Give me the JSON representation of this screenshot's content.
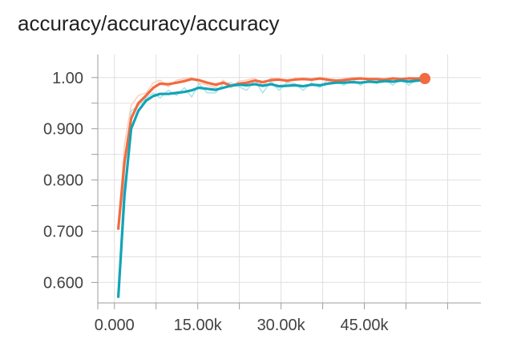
{
  "chart_data": {
    "type": "line",
    "title": "accuracy/accuracy/accuracy",
    "xlabel": "",
    "ylabel": "",
    "xlim": [
      -3000,
      66000
    ],
    "ylim": [
      0.56,
      1.045
    ],
    "x_ticks": [
      0,
      15000,
      30000,
      45000
    ],
    "x_tick_labels": [
      "0.000",
      "15.00k",
      "30.00k",
      "45.00k"
    ],
    "y_ticks": [
      0.6,
      0.7,
      0.8,
      0.9,
      1.0
    ],
    "y_tick_labels": [
      "0.600",
      "0.700",
      "0.800",
      "0.900",
      "1.00"
    ],
    "grid": true,
    "legend": "none",
    "colors": {
      "series_orange": "#f26a3f",
      "series_teal": "#14a3b5",
      "raw_orange": "#fbc9b6",
      "raw_teal": "#9fe0e6",
      "grid": "#e0e0e0",
      "axis": "#9e9e9e"
    },
    "series": [
      {
        "color": "#f26a3f",
        "end_marker": true,
        "x": [
          700,
          1800,
          3000,
          4300,
          5700,
          7000,
          8200,
          9700,
          11200,
          12600,
          13900,
          15200,
          16700,
          18200,
          19600,
          21000,
          22400,
          23800,
          25300,
          26700,
          28200,
          29600,
          31100,
          32500,
          34000,
          35500,
          37000,
          38400,
          39900,
          41300,
          42800,
          44300,
          45800,
          47200,
          48700,
          50100,
          51600,
          53000,
          54500,
          55900
        ],
        "y": [
          0.705,
          0.835,
          0.92,
          0.95,
          0.965,
          0.98,
          0.988,
          0.987,
          0.99,
          0.993,
          0.997,
          0.995,
          0.99,
          0.986,
          0.99,
          0.984,
          0.988,
          0.99,
          0.994,
          0.991,
          0.995,
          0.996,
          0.994,
          0.996,
          0.997,
          0.996,
          0.998,
          0.996,
          0.994,
          0.995,
          0.997,
          0.998,
          0.997,
          0.997,
          0.996,
          0.998,
          0.997,
          0.998,
          0.998,
          0.998
        ]
      },
      {
        "color": "#14a3b5",
        "end_marker": false,
        "x": [
          700,
          1800,
          3000,
          4300,
          5700,
          7000,
          8200,
          9700,
          11200,
          12600,
          13900,
          15200,
          16700,
          18200,
          19600,
          21000,
          22400,
          23800,
          25300,
          26700,
          28200,
          29600,
          31100,
          32500,
          34000,
          35500,
          37000,
          38400,
          39900,
          41300,
          42800,
          44300,
          45800,
          47200,
          48700,
          50100,
          51600,
          53000,
          54500,
          55900
        ],
        "y": [
          0.572,
          0.77,
          0.9,
          0.935,
          0.955,
          0.964,
          0.968,
          0.968,
          0.97,
          0.972,
          0.975,
          0.98,
          0.978,
          0.976,
          0.98,
          0.984,
          0.986,
          0.985,
          0.987,
          0.984,
          0.987,
          0.983,
          0.984,
          0.985,
          0.983,
          0.986,
          0.985,
          0.988,
          0.99,
          0.99,
          0.991,
          0.99,
          0.992,
          0.991,
          0.993,
          0.992,
          0.994,
          0.992,
          0.994,
          0.995
        ]
      }
    ],
    "raw_series": [
      {
        "color": "#fbc9b6",
        "x": [
          700,
          1800,
          3000,
          4300,
          5700,
          7000,
          8200,
          9700,
          11200,
          12600,
          13900,
          15200,
          16700,
          18200,
          19600,
          21000,
          22400,
          23800,
          25300,
          26700,
          28200,
          29600,
          31100,
          32500,
          34000,
          35500,
          37000,
          38400,
          39900,
          41300,
          42800,
          44300,
          45800,
          47200,
          48700,
          50100,
          51600,
          53000,
          54500,
          55900
        ],
        "y": [
          0.705,
          0.87,
          0.945,
          0.965,
          0.97,
          0.99,
          0.995,
          0.982,
          0.995,
          0.998,
          1.0,
          0.99,
          0.985,
          0.98,
          0.995,
          0.98,
          0.993,
          0.995,
          0.999,
          0.985,
          0.999,
          0.998,
          0.99,
          0.999,
          0.999,
          0.993,
          1.0,
          0.993,
          0.99,
          0.998,
          1.0,
          1.0,
          0.995,
          0.998,
          0.993,
          1.0,
          0.995,
          1.0,
          0.999,
          0.998
        ]
      },
      {
        "color": "#9fe0e6",
        "x": [
          700,
          1800,
          3000,
          4300,
          5700,
          7000,
          8200,
          9700,
          11200,
          12600,
          13900,
          15200,
          16700,
          18200,
          19600,
          21000,
          22400,
          23800,
          25300,
          26700,
          28200,
          29600,
          31100,
          32500,
          34000,
          35500,
          37000,
          38400,
          39900,
          41300,
          42800,
          44300,
          45800,
          47200,
          48700,
          50100,
          51600,
          53000,
          54500,
          55900
        ],
        "y": [
          0.572,
          0.82,
          0.935,
          0.945,
          0.96,
          0.97,
          0.96,
          0.975,
          0.965,
          0.98,
          0.962,
          0.988,
          0.97,
          0.97,
          0.988,
          0.99,
          0.982,
          0.975,
          0.995,
          0.97,
          0.993,
          0.975,
          0.99,
          0.988,
          0.975,
          0.99,
          0.98,
          0.996,
          0.995,
          0.985,
          0.997,
          0.985,
          0.996,
          0.988,
          0.998,
          0.985,
          0.999,
          0.985,
          0.997,
          0.999
        ]
      }
    ]
  }
}
